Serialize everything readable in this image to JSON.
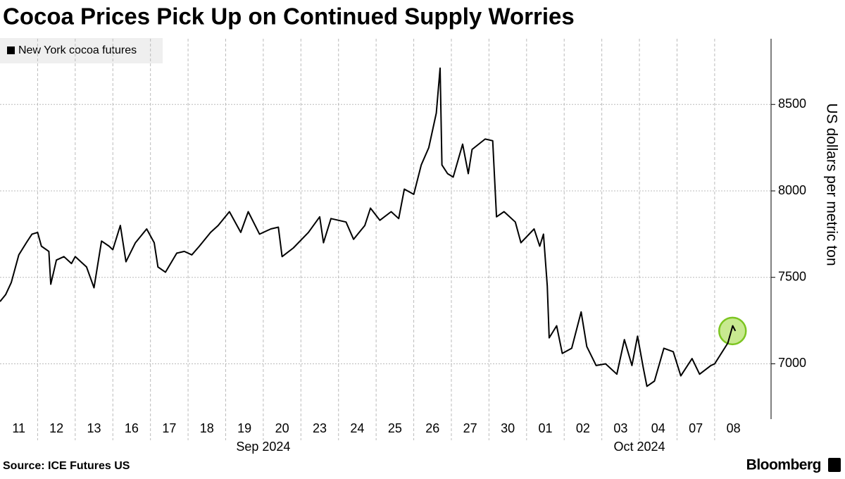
{
  "chart_data": {
    "type": "line",
    "title": "Cocoa Prices Pick Up on Continued Supply Worries",
    "source": "Source: ICE Futures US",
    "brand": "Bloomberg",
    "y_axis_label": "US dollars per metric ton",
    "x": [
      0,
      0.15,
      0.3,
      0.5,
      0.7,
      0.85,
      1.0,
      1.1,
      1.3,
      1.35,
      1.5,
      1.7,
      1.9,
      2.0,
      2.3,
      2.5,
      2.7,
      2.9,
      3.0,
      3.2,
      3.35,
      3.6,
      3.9,
      4.1,
      4.2,
      4.4,
      4.7,
      4.9,
      5.1,
      5.3,
      5.6,
      5.8,
      6.1,
      6.4,
      6.6,
      6.9,
      7.2,
      7.4,
      7.5,
      7.8,
      8.2,
      8.5,
      8.6,
      8.8,
      9.2,
      9.4,
      9.7,
      9.85,
      10.1,
      10.4,
      10.6,
      10.75,
      11.0,
      11.2,
      11.4,
      11.6,
      11.7,
      11.75,
      11.9,
      12.05,
      12.3,
      12.45,
      12.55,
      12.9,
      13.1,
      13.2,
      13.4,
      13.7,
      13.85,
      14.2,
      14.35,
      14.45,
      14.55,
      14.6,
      14.8,
      14.95,
      15.2,
      15.45,
      15.6,
      15.85,
      16.1,
      16.4,
      16.6,
      16.8,
      16.95,
      17.1,
      17.2,
      17.4,
      17.65,
      17.9,
      18.1,
      18.4,
      18.6,
      18.9,
      19.0,
      19.35,
      19.48,
      19.55
    ],
    "series": [
      {
        "name": "New York cocoa futures",
        "color": "#000000",
        "values": [
          7360,
          7400,
          7470,
          7630,
          7700,
          7750,
          7760,
          7680,
          7650,
          7460,
          7600,
          7620,
          7580,
          7620,
          7560,
          7440,
          7710,
          7680,
          7660,
          7800,
          7590,
          7700,
          7780,
          7700,
          7560,
          7530,
          7640,
          7650,
          7630,
          7680,
          7760,
          7800,
          7880,
          7760,
          7880,
          7750,
          7780,
          7790,
          7620,
          7670,
          7760,
          7850,
          7700,
          7840,
          7820,
          7720,
          7800,
          7900,
          7830,
          7880,
          7840,
          8010,
          7980,
          8150,
          8250,
          8450,
          8710,
          8150,
          8100,
          8080,
          8270,
          8100,
          8240,
          8300,
          8290,
          7850,
          7880,
          7820,
          7700,
          7780,
          7680,
          7750,
          7450,
          7150,
          7220,
          7060,
          7090,
          7300,
          7100,
          6990,
          7000,
          6940,
          7140,
          6990,
          7160,
          6980,
          6870,
          6900,
          7090,
          7070,
          6930,
          7030,
          6940,
          6990,
          7000,
          7120,
          7220,
          7190
        ]
      }
    ],
    "xlim": [
      0,
      20.5
    ],
    "xticks": [
      {
        "value": 0.5,
        "label": "11"
      },
      {
        "value": 1.5,
        "label": "12"
      },
      {
        "value": 2.5,
        "label": "13"
      },
      {
        "value": 3.5,
        "label": "16"
      },
      {
        "value": 4.5,
        "label": "17"
      },
      {
        "value": 5.5,
        "label": "18"
      },
      {
        "value": 6.5,
        "label": "19"
      },
      {
        "value": 7.5,
        "label": "20"
      },
      {
        "value": 8.5,
        "label": "23"
      },
      {
        "value": 9.5,
        "label": "24"
      },
      {
        "value": 10.5,
        "label": "25"
      },
      {
        "value": 11.5,
        "label": "26"
      },
      {
        "value": 12.5,
        "label": "27"
      },
      {
        "value": 13.5,
        "label": "30"
      },
      {
        "value": 14.5,
        "label": "01"
      },
      {
        "value": 15.5,
        "label": "02"
      },
      {
        "value": 16.5,
        "label": "03"
      },
      {
        "value": 17.5,
        "label": "04"
      },
      {
        "value": 18.5,
        "label": "07"
      },
      {
        "value": 19.5,
        "label": "08"
      }
    ],
    "x_groups": [
      {
        "label": "Sep 2024",
        "start": 0,
        "end": 14
      },
      {
        "label": "Oct 2024",
        "start": 14,
        "end": 20
      }
    ],
    "ylim": [
      6680,
      8880
    ],
    "yticks": [
      7000,
      7500,
      8000,
      8500
    ],
    "grid": true,
    "highlight_last": true,
    "highlight_color": "#b5e16b"
  }
}
